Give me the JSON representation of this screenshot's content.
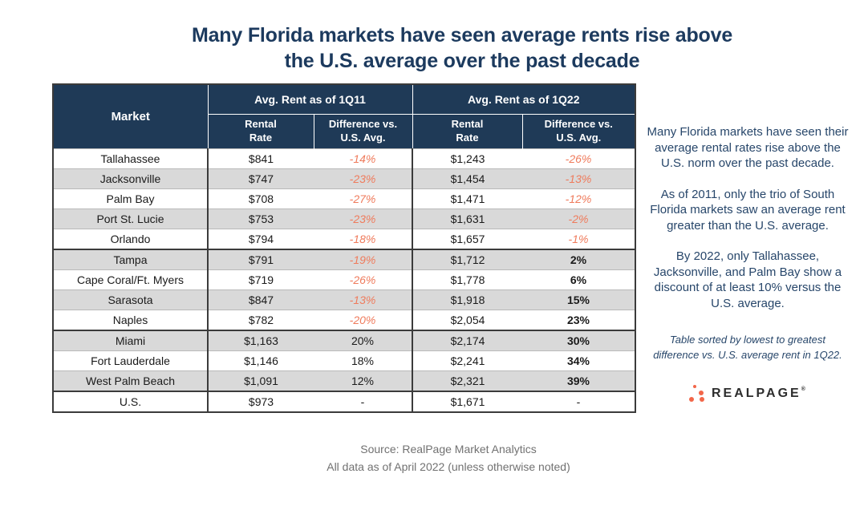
{
  "title": "Many Florida markets have seen average rents rise above\nthe U.S. average over the past decade",
  "chart_data": {
    "type": "table",
    "title": "Many Florida markets have seen average rents rise above the U.S. average over the past decade",
    "market_header": "Market",
    "column_groups": [
      {
        "label": "Avg. Rent as of 1Q11",
        "sub": [
          "Rental\nRate",
          "Difference vs.\nU.S. Avg."
        ]
      },
      {
        "label": "Avg. Rent as of 1Q22",
        "sub": [
          "Rental\nRate",
          "Difference vs.\nU.S. Avg."
        ]
      }
    ],
    "rows": [
      [
        "Tallahassee",
        "$841",
        "-14%",
        "$1,243",
        "-26%"
      ],
      [
        "Jacksonville",
        "$747",
        "-23%",
        "$1,454",
        "-13%"
      ],
      [
        "Palm Bay",
        "$708",
        "-27%",
        "$1,471",
        "-12%"
      ],
      [
        "Port St. Lucie",
        "$753",
        "-23%",
        "$1,631",
        "-2%"
      ],
      [
        "Orlando",
        "$794",
        "-18%",
        "$1,657",
        "-1%"
      ],
      [
        "Tampa",
        "$791",
        "-19%",
        "$1,712",
        "2%"
      ],
      [
        "Cape Coral/Ft. Myers",
        "$719",
        "-26%",
        "$1,778",
        "6%"
      ],
      [
        "Sarasota",
        "$847",
        "-13%",
        "$1,918",
        "15%"
      ],
      [
        "Naples",
        "$782",
        "-20%",
        "$2,054",
        "23%"
      ],
      [
        "Miami",
        "$1,163",
        "20%",
        "$2,174",
        "30%"
      ],
      [
        "Fort Lauderdale",
        "$1,146",
        "18%",
        "$2,241",
        "34%"
      ],
      [
        "West Palm Beach",
        "$1,091",
        "12%",
        "$2,321",
        "39%"
      ],
      [
        "U.S.",
        "$973",
        "-",
        "$1,671",
        "-"
      ]
    ],
    "group_separators_before": [
      5,
      9,
      12
    ]
  },
  "sidebar": {
    "paragraphs": [
      "Many Florida markets have seen their average rental rates rise above the U.S. norm over the past decade.",
      "As of 2011, only the trio of South Florida markets saw an average rent greater than the U.S. average.",
      "By 2022, only Tallahassee, Jacksonville, and Palm Bay show a discount of at least 10% versus the U.S. average."
    ],
    "note": "Table sorted by lowest to greatest difference vs. U.S. average rent in 1Q22."
  },
  "logo": {
    "text": "REALPAGE",
    "registered_mark": "®"
  },
  "footer": {
    "line1": "Source: RealPage Market Analytics",
    "line2": "All data as of April 2022 (unless otherwise noted)"
  },
  "colors": {
    "navy_header": "#1f3a57",
    "title_navy": "#1c3a5e",
    "negative_orange": "#ef7b5c",
    "stripe_gray": "#d9d9d9",
    "logo_orange": "#f26649",
    "footer_gray": "#717171"
  }
}
